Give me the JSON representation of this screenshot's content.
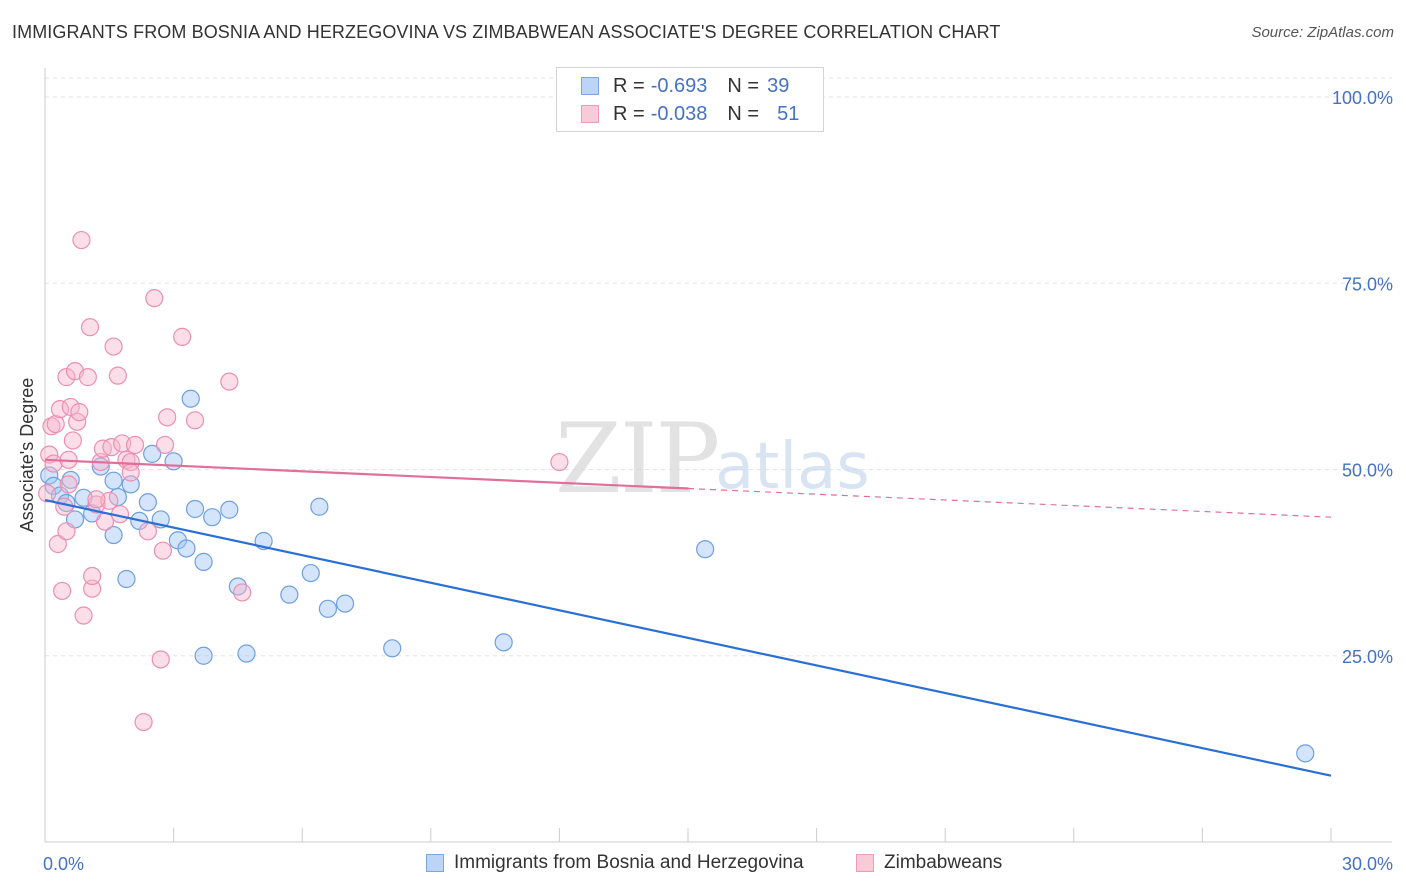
{
  "title": "IMMIGRANTS FROM BOSNIA AND HERZEGOVINA VS ZIMBABWEAN ASSOCIATE'S DEGREE CORRELATION CHART",
  "source": "Source: ZipAtlas.com",
  "watermark": {
    "zip": "ZIP",
    "atlas": "atlas"
  },
  "legend": {
    "rows": [
      {
        "r_label": "R =",
        "r_value": "-0.693",
        "n_label": "N =",
        "n_value": "39"
      },
      {
        "r_label": "R =",
        "r_value": "-0.038",
        "n_label": "N =",
        "n_value": "51"
      }
    ]
  },
  "chart_data": {
    "type": "scatter",
    "title": "IMMIGRANTS FROM BOSNIA AND HERZEGOVINA VS ZIMBABWEAN ASSOCIATE'S DEGREE CORRELATION CHART",
    "xlabel": "",
    "ylabel": "Associate's Degree",
    "xlim": [
      0,
      30
    ],
    "ylim": [
      0,
      105
    ],
    "x_tick_labels": [
      "0.0%",
      "30.0%"
    ],
    "y_ticks": [
      25,
      50,
      75,
      100
    ],
    "y_tick_labels": [
      "25.0%",
      "50.0%",
      "75.0%",
      "100.0%"
    ],
    "grid": true,
    "colors": {
      "bosnia": "#4a86e8",
      "zimbabwe": "#ec7fa3",
      "bosnia_line": "#2a6fd6",
      "zimbabwe_line": "#e0709a",
      "tick_label": "#4472c4"
    },
    "series": [
      {
        "name": "Immigrants from Bosnia and Herzegovina",
        "R": -0.693,
        "N": 39,
        "trend": {
          "x": [
            0,
            30
          ],
          "y": [
            45.9,
            8.9
          ],
          "dashed_after": null
        },
        "points": [
          [
            0.1,
            49.2
          ],
          [
            0.2,
            47.8
          ],
          [
            0.35,
            46.5
          ],
          [
            0.5,
            45.5
          ],
          [
            0.6,
            48.6
          ],
          [
            0.7,
            43.3
          ],
          [
            0.9,
            46.2
          ],
          [
            1.1,
            44.1
          ],
          [
            1.3,
            50.4
          ],
          [
            1.6,
            41.2
          ],
          [
            1.6,
            48.5
          ],
          [
            1.7,
            46.3
          ],
          [
            1.9,
            35.3
          ],
          [
            2.0,
            48.0
          ],
          [
            2.2,
            43.1
          ],
          [
            2.4,
            45.6
          ],
          [
            2.5,
            52.1
          ],
          [
            2.7,
            43.3
          ],
          [
            3.0,
            51.1
          ],
          [
            3.1,
            40.5
          ],
          [
            3.3,
            39.4
          ],
          [
            3.4,
            59.5
          ],
          [
            3.5,
            44.7
          ],
          [
            3.7,
            25.0
          ],
          [
            3.7,
            37.6
          ],
          [
            3.9,
            43.6
          ],
          [
            4.3,
            44.6
          ],
          [
            4.5,
            34.3
          ],
          [
            4.7,
            25.3
          ],
          [
            5.1,
            40.4
          ],
          [
            5.7,
            33.2
          ],
          [
            6.2,
            36.1
          ],
          [
            6.4,
            45.0
          ],
          [
            6.6,
            31.3
          ],
          [
            7.0,
            32.0
          ],
          [
            8.1,
            26.0
          ],
          [
            10.7,
            26.8
          ],
          [
            15.4,
            39.3
          ],
          [
            29.4,
            11.9
          ]
        ]
      },
      {
        "name": "Zimbabweans",
        "R": -0.038,
        "N": 51,
        "trend": {
          "x": [
            0,
            30
          ],
          "y": [
            51.3,
            43.6
          ],
          "dashed_after": 15.0
        },
        "points": [
          [
            0.05,
            46.8
          ],
          [
            0.1,
            52.0
          ],
          [
            0.15,
            55.8
          ],
          [
            0.2,
            50.8
          ],
          [
            0.25,
            56.1
          ],
          [
            0.3,
            40.0
          ],
          [
            0.35,
            58.1
          ],
          [
            0.4,
            33.7
          ],
          [
            0.45,
            45.0
          ],
          [
            0.5,
            62.4
          ],
          [
            0.5,
            41.7
          ],
          [
            0.55,
            51.3
          ],
          [
            0.6,
            58.4
          ],
          [
            0.65,
            53.9
          ],
          [
            0.7,
            63.2
          ],
          [
            0.75,
            56.4
          ],
          [
            0.8,
            57.7
          ],
          [
            0.85,
            80.8
          ],
          [
            0.9,
            30.4
          ],
          [
            1.0,
            62.4
          ],
          [
            1.05,
            69.1
          ],
          [
            1.1,
            34.0
          ],
          [
            1.1,
            35.7
          ],
          [
            1.2,
            45.3
          ],
          [
            1.3,
            51.0
          ],
          [
            1.35,
            52.8
          ],
          [
            1.4,
            43.0
          ],
          [
            1.5,
            45.8
          ],
          [
            1.55,
            53.0
          ],
          [
            1.6,
            66.5
          ],
          [
            1.7,
            62.6
          ],
          [
            1.8,
            53.5
          ],
          [
            1.9,
            51.3
          ],
          [
            2.0,
            51.0
          ],
          [
            2.0,
            49.6
          ],
          [
            2.1,
            53.3
          ],
          [
            2.3,
            16.1
          ],
          [
            2.4,
            41.7
          ],
          [
            2.55,
            73.0
          ],
          [
            2.7,
            24.5
          ],
          [
            2.75,
            39.1
          ],
          [
            2.8,
            53.3
          ],
          [
            2.85,
            57.0
          ],
          [
            3.2,
            67.8
          ],
          [
            3.5,
            56.6
          ],
          [
            4.3,
            61.8
          ],
          [
            4.6,
            33.5
          ],
          [
            12.0,
            51.0
          ],
          [
            1.2,
            46.0
          ],
          [
            0.55,
            48.0
          ],
          [
            1.75,
            44.0
          ]
        ]
      }
    ]
  },
  "bottom_legend": {
    "items": [
      {
        "label": "Immigrants from Bosnia and Herzegovina"
      },
      {
        "label": "Zimbabweans"
      }
    ]
  }
}
